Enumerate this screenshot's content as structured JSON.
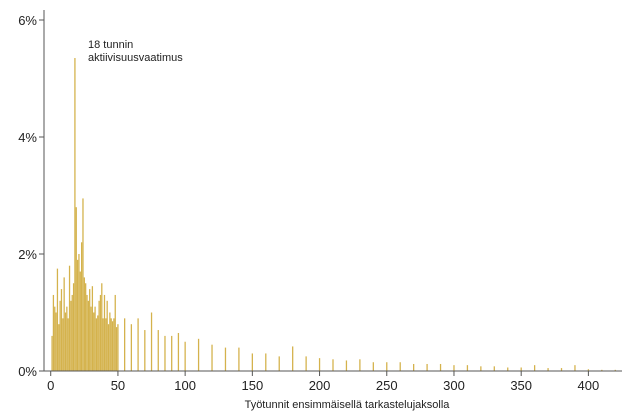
{
  "chart_data": {
    "type": "bar",
    "title": "",
    "xlabel": "Työtunnit ensimmäisellä tarkastelujaksolla",
    "ylabel": "",
    "xlim": [
      -5,
      425
    ],
    "ylim": [
      0,
      6
    ],
    "x_ticks": [
      0,
      50,
      100,
      150,
      200,
      250,
      300,
      350,
      400
    ],
    "x_tick_labels": [
      "0",
      "50",
      "100",
      "150",
      "200",
      "250",
      "300",
      "350",
      "400"
    ],
    "y_ticks": [
      0,
      2,
      4,
      6
    ],
    "y_tick_labels": [
      "0%",
      "2%",
      "4%",
      "6%"
    ],
    "bar_color": "#d4b24c",
    "grid": false,
    "annotation": {
      "lines": [
        "18 tunnin",
        "aktiivisuusvaatimus"
      ],
      "x": 18,
      "y": 5.35
    },
    "x": [
      1,
      2,
      3,
      4,
      5,
      6,
      7,
      8,
      9,
      10,
      11,
      12,
      13,
      14,
      15,
      16,
      17,
      18,
      19,
      20,
      21,
      22,
      23,
      24,
      25,
      26,
      27,
      28,
      29,
      30,
      31,
      32,
      33,
      34,
      35,
      36,
      37,
      38,
      39,
      40,
      41,
      42,
      43,
      44,
      45,
      46,
      47,
      48,
      49,
      50,
      55,
      60,
      65,
      70,
      75,
      80,
      85,
      90,
      95,
      100,
      110,
      120,
      130,
      140,
      150,
      160,
      170,
      180,
      190,
      200,
      210,
      220,
      230,
      240,
      250,
      260,
      270,
      280,
      290,
      300,
      310,
      320,
      330,
      340,
      350,
      360,
      370,
      380,
      390,
      400,
      410,
      420
    ],
    "values": [
      0.6,
      1.3,
      1.1,
      1.0,
      1.75,
      0.8,
      1.2,
      1.4,
      0.9,
      1.6,
      1.0,
      1.1,
      0.9,
      1.8,
      1.2,
      1.3,
      1.5,
      5.35,
      2.8,
      1.9,
      2.0,
      1.7,
      2.2,
      2.95,
      1.6,
      1.5,
      1.3,
      1.2,
      1.4,
      1.1,
      1.45,
      1.0,
      1.1,
      0.9,
      0.95,
      1.2,
      1.3,
      1.5,
      0.9,
      1.3,
      0.9,
      1.2,
      0.8,
      1.0,
      0.9,
      0.85,
      0.9,
      1.3,
      0.75,
      0.8,
      0.9,
      0.8,
      0.9,
      0.7,
      1.0,
      0.7,
      0.6,
      0.6,
      0.65,
      0.5,
      0.55,
      0.45,
      0.4,
      0.4,
      0.3,
      0.3,
      0.25,
      0.42,
      0.25,
      0.22,
      0.2,
      0.18,
      0.2,
      0.15,
      0.15,
      0.15,
      0.12,
      0.12,
      0.12,
      0.1,
      0.1,
      0.08,
      0.08,
      0.06,
      0.06,
      0.1,
      0.05,
      0.05,
      0.1,
      0.03,
      0.02,
      0.02
    ]
  }
}
